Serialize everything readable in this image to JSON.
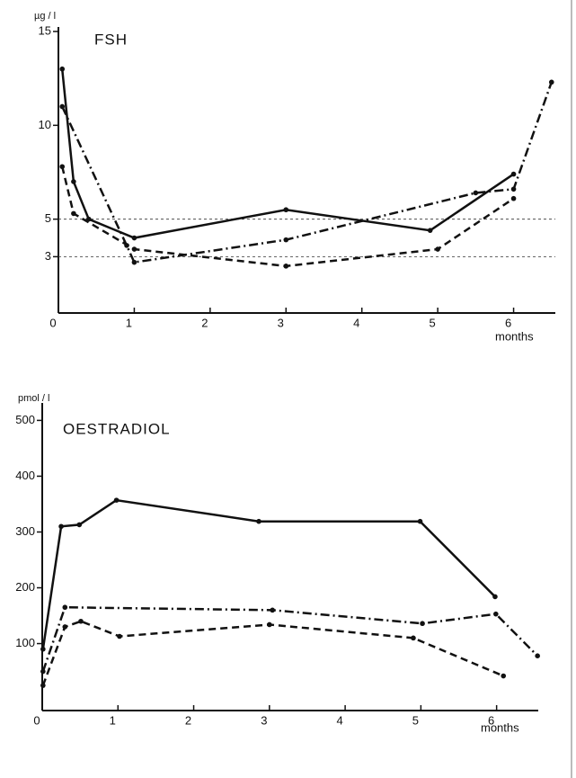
{
  "chart_data": [
    {
      "type": "line",
      "title": "FSH",
      "y_label": "µg / l",
      "x_label": "months",
      "xlim": [
        0,
        6.55
      ],
      "xticks": [
        0,
        1,
        2,
        3,
        4,
        5,
        6
      ],
      "ylim": [
        0,
        15
      ],
      "yticks": [
        3,
        5,
        10,
        15
      ],
      "hlines": [
        5,
        3
      ],
      "series": [
        {
          "color": "#111111",
          "dash": "solid",
          "x": [
            0.05,
            0.2,
            0.4,
            1.0,
            3.0,
            4.9,
            6.0
          ],
          "values": [
            13,
            7,
            5,
            4,
            5.5,
            4.4,
            7.4
          ]
        },
        {
          "color": "#111111",
          "dash": "dashdot",
          "x": [
            0.05,
            0.9,
            1.0,
            3.0,
            5.5,
            6.0,
            6.5
          ],
          "values": [
            11,
            3.6,
            2.7,
            3.9,
            6.4,
            6.6,
            12.3
          ]
        },
        {
          "color": "#111111",
          "dash": "dashed",
          "x": [
            0.05,
            0.2,
            1.0,
            3.0,
            5.0,
            6.0
          ],
          "values": [
            7.8,
            5.3,
            3.4,
            2.5,
            3.4,
            6.1
          ]
        }
      ]
    },
    {
      "type": "line",
      "title": "OESTRADIOL",
      "y_label": "pmol / l",
      "x_label": "months",
      "xlim": [
        0,
        6.55
      ],
      "xticks": [
        0,
        1,
        2,
        3,
        4,
        5,
        6
      ],
      "ylim": [
        -20,
        520
      ],
      "yticks": [
        100,
        200,
        300,
        400,
        500
      ],
      "series": [
        {
          "color": "#111111",
          "dash": "solid",
          "x": [
            0.01,
            0.25,
            0.49,
            0.98,
            2.86,
            4.99,
            5.98
          ],
          "values": [
            90,
            310,
            313,
            357,
            319,
            319,
            184
          ]
        },
        {
          "color": "#111111",
          "dash": "dashdot",
          "x": [
            0.01,
            0.3,
            3.04,
            5.02,
            5.99,
            6.54
          ],
          "values": [
            50,
            165,
            160,
            136,
            153,
            78
          ]
        },
        {
          "color": "#111111",
          "dash": "dashed",
          "x": [
            0.01,
            0.3,
            0.51,
            1.02,
            3.0,
            4.9,
            6.09
          ],
          "values": [
            25,
            130,
            140,
            113,
            134,
            110,
            42
          ]
        }
      ]
    }
  ]
}
